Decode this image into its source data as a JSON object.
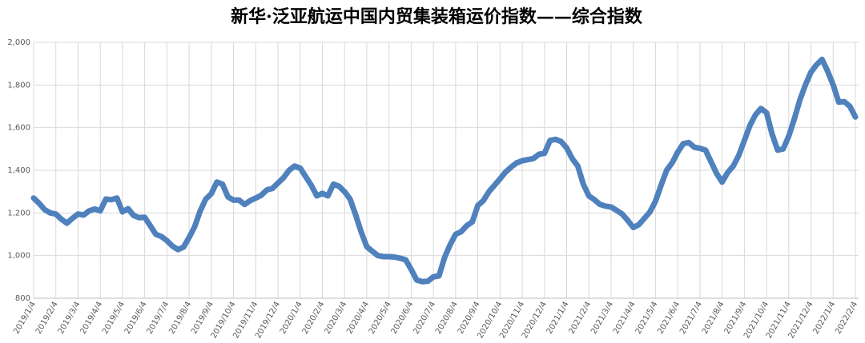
{
  "chart_data": {
    "type": "line",
    "title": "新华·泛亚航运中国内贸集装箱运价指数——综合指数",
    "categories": [
      "2019/1/4",
      null,
      null,
      null,
      "2019/2/4",
      null,
      null,
      null,
      "2019/3/4",
      null,
      null,
      null,
      "2019/4/4",
      null,
      null,
      null,
      "2019/5/4",
      null,
      null,
      null,
      "2019/6/4",
      null,
      null,
      null,
      "2019/7/4",
      null,
      null,
      null,
      "2019/8/4",
      null,
      null,
      null,
      "2019/9/4",
      null,
      null,
      null,
      "2019/10/4",
      null,
      null,
      null,
      "2019/11/4",
      null,
      null,
      null,
      "2019/12/4",
      null,
      null,
      null,
      "2020/1/4",
      null,
      null,
      null,
      "2020/2/4",
      null,
      null,
      null,
      "2020/3/4",
      null,
      null,
      null,
      "2020/4/4",
      null,
      null,
      null,
      "2020/5/4",
      null,
      null,
      null,
      "2020/6/4",
      null,
      null,
      null,
      "2020/7/4",
      null,
      null,
      null,
      "2020/8/4",
      null,
      null,
      null,
      "2020/9/4",
      null,
      null,
      null,
      "2020/10/4",
      null,
      null,
      null,
      "2020/11/4",
      null,
      null,
      null,
      "2020/12/4",
      null,
      null,
      null,
      "2021/1/4",
      null,
      null,
      null,
      "2021/2/4",
      null,
      null,
      null,
      "2021/3/4",
      null,
      null,
      null,
      "2021/4/4",
      null,
      null,
      null,
      "2021/5/4",
      null,
      null,
      null,
      "2021/6/4",
      null,
      null,
      null,
      "2021/7/4",
      null,
      null,
      null,
      "2021/8/4",
      null,
      null,
      null,
      "2021/9/4",
      null,
      null,
      null,
      "2021/10/4",
      null,
      null,
      null,
      "2021/11/4",
      null,
      null,
      null,
      "2021/12/4",
      null,
      null,
      null,
      "2022/1/4",
      null,
      null,
      null,
      "2022/2/4"
    ],
    "series": [
      {
        "name": "综合指数",
        "color": "#4f81bd",
        "values": [
          1270,
          1245,
          1215,
          1200,
          1195,
          1170,
          1152,
          1175,
          1195,
          1190,
          1210,
          1218,
          1210,
          1265,
          1262,
          1270,
          1205,
          1220,
          1188,
          1178,
          1180,
          1140,
          1100,
          1090,
          1070,
          1045,
          1028,
          1040,
          1085,
          1135,
          1210,
          1265,
          1290,
          1345,
          1335,
          1275,
          1260,
          1260,
          1240,
          1258,
          1270,
          1283,
          1308,
          1315,
          1340,
          1365,
          1400,
          1420,
          1410,
          1370,
          1330,
          1280,
          1292,
          1280,
          1335,
          1325,
          1300,
          1265,
          1190,
          1110,
          1042,
          1020,
          1000,
          995,
          995,
          993,
          988,
          980,
          935,
          885,
          878,
          880,
          900,
          905,
          990,
          1050,
          1100,
          1112,
          1140,
          1158,
          1235,
          1258,
          1300,
          1330,
          1360,
          1392,
          1415,
          1435,
          1445,
          1450,
          1455,
          1475,
          1480,
          1540,
          1545,
          1535,
          1505,
          1455,
          1420,
          1335,
          1280,
          1262,
          1240,
          1232,
          1228,
          1212,
          1195,
          1165,
          1132,
          1145,
          1175,
          1205,
          1255,
          1330,
          1400,
          1435,
          1485,
          1525,
          1530,
          1508,
          1503,
          1495,
          1440,
          1385,
          1345,
          1390,
          1420,
          1470,
          1540,
          1610,
          1660,
          1690,
          1670,
          1570,
          1495,
          1500,
          1560,
          1640,
          1730,
          1800,
          1860,
          1895,
          1920,
          1865,
          1800,
          1720,
          1722,
          1700,
          1650
        ]
      }
    ],
    "ylim": [
      800,
      2000
    ],
    "yticks": [
      800,
      {
        "value": 1000,
        "label": "1,000"
      },
      {
        "value": 1200,
        "label": "1,200"
      },
      {
        "value": 1400,
        "label": "1,400"
      },
      {
        "value": 1600,
        "label": "1,600"
      },
      {
        "value": 1800,
        "label": "1,800"
      },
      {
        "value": 2000,
        "label": "2,000"
      }
    ],
    "grid": true
  }
}
